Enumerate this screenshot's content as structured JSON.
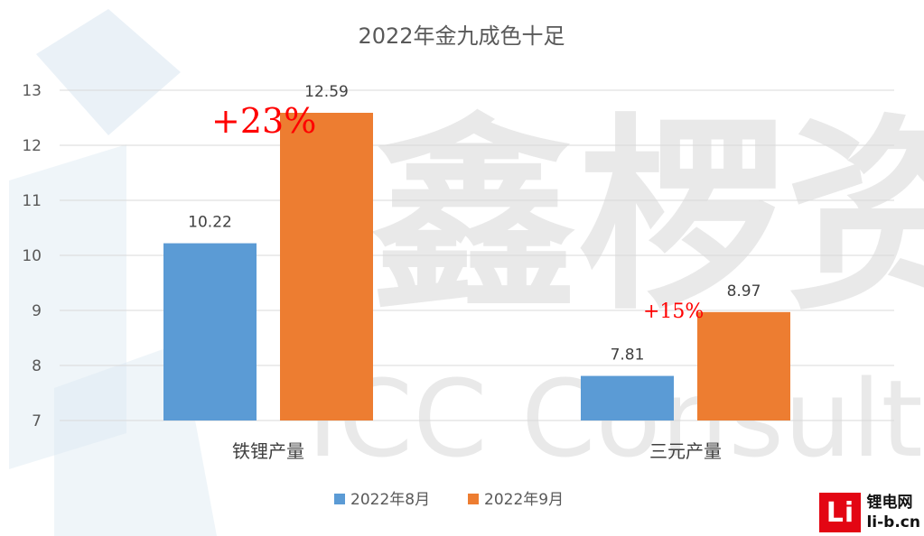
{
  "chart_data": {
    "type": "bar",
    "title": "2022年金九成色十足",
    "categories": [
      "铁锂产量",
      "三元产量"
    ],
    "series": [
      {
        "name": "2022年8月",
        "values": [
          10.22,
          7.81
        ],
        "color": "#5b9bd5"
      },
      {
        "name": "2022年9月",
        "values": [
          12.59,
          8.97
        ],
        "color": "#ed7d31"
      }
    ],
    "ylim": [
      7,
      13
    ],
    "yticks": [
      7,
      8,
      9,
      10,
      11,
      12,
      13
    ],
    "grid": true,
    "legend": "bottom",
    "annotations": [
      {
        "text": "+23%",
        "category": "铁锂产量",
        "color": "#ff0000"
      },
      {
        "text": "+15%",
        "category": "三元产量",
        "color": "#ff0000"
      }
    ]
  },
  "watermark": {
    "text_cn": "鑫椤资讯",
    "text_en": "ICC Consulting"
  },
  "brand": {
    "mark": "Li",
    "name": "锂电网",
    "site": "li-b.cn"
  }
}
